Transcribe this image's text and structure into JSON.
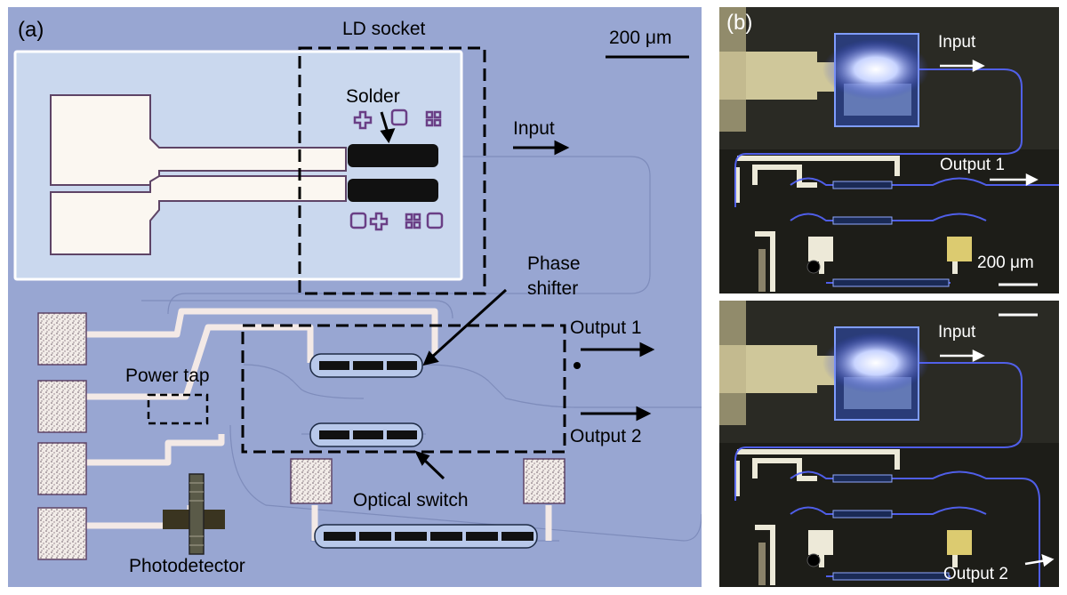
{
  "panel_a": {
    "tag": "(a)",
    "labels": {
      "ld_socket": "LD socket",
      "scale_bar": "200 μm",
      "solder": "Solder",
      "input": "Input",
      "phase_shifter_line1": "Phase",
      "phase_shifter_line2": "shifter",
      "output_1": "Output 1",
      "output_2": "Output 2",
      "power_tap": "Power tap",
      "optical_switch": "Optical switch",
      "photodetector": "Photodetector"
    }
  },
  "panel_b": {
    "tag": "(b)",
    "top_labels": {
      "input": "Input",
      "output_1": "Output 1",
      "scale_bar": "200 μm"
    },
    "bottom_labels": {
      "input": "Input",
      "output_2": "Output 2"
    }
  },
  "colors": {
    "chip_background": "#98a6d2",
    "metal_pad": "#fbf4ec",
    "dark_background": "#1b1b18",
    "waveguide_glow": "#5566ff"
  }
}
